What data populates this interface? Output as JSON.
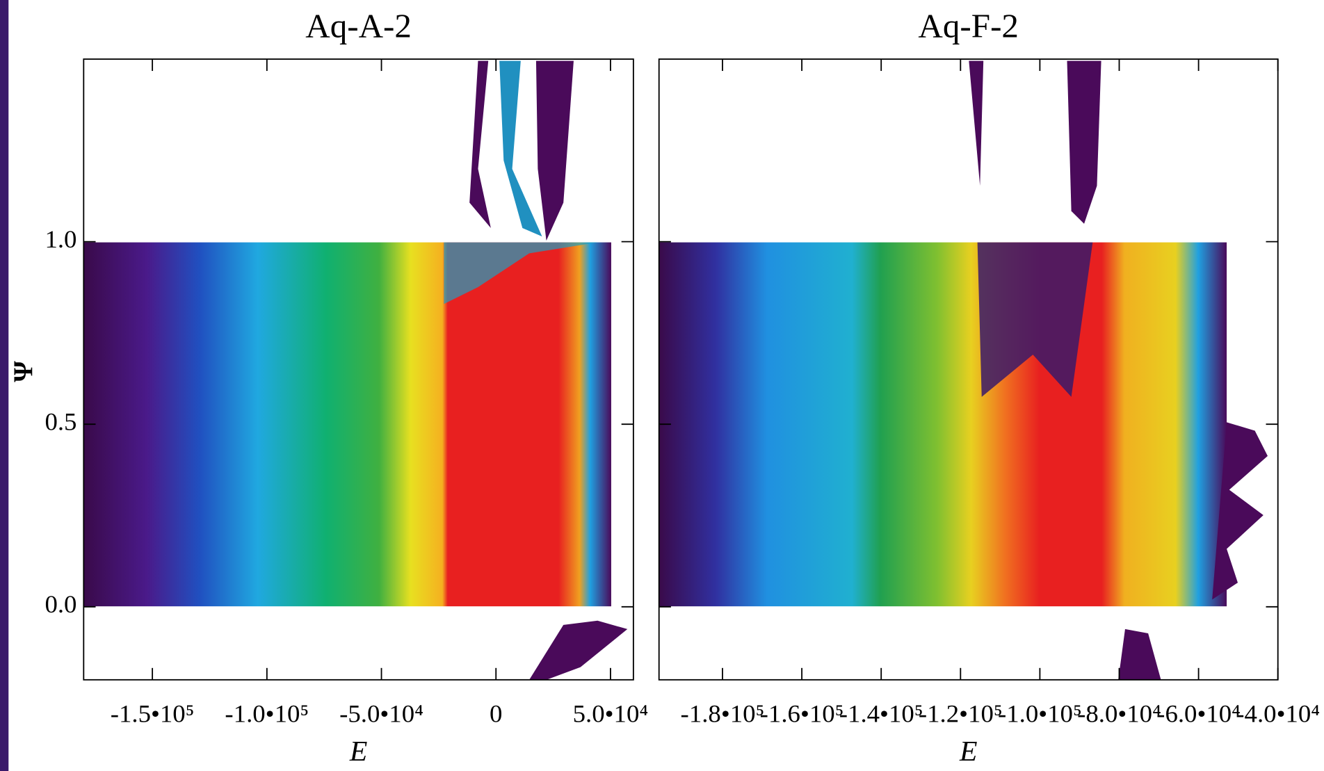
{
  "chart_data": [
    {
      "type": "density",
      "title": "Aq-A-2",
      "xlabel": "E",
      "ylabel": "Ψ",
      "xlim": [
        -180000,
        60000
      ],
      "ylim": [
        -0.2,
        1.5
      ],
      "xticks": [
        {
          "value": -150000,
          "label": "-1.5•10⁵"
        },
        {
          "value": -100000,
          "label": "-1.0•10⁵"
        },
        {
          "value": -50000,
          "label": "-5.0•10⁴"
        },
        0,
        {
          "value": 50000,
          "label": "5.0•10⁴"
        }
      ],
      "yticks": [
        {
          "value": 0,
          "label": "0.0"
        },
        0.5,
        {
          "value": 1,
          "label": "1.0"
        }
      ]
    },
    {
      "type": "density",
      "title": "Aq-F-2",
      "xlabel": "E",
      "xlim": [
        -196000,
        -40000
      ],
      "ylim": [
        -0.2,
        1.5
      ],
      "xticks": [
        {
          "value": -180000,
          "label": "-1.8•10⁵"
        },
        {
          "value": -160000,
          "label": "-1.6•10⁵"
        },
        {
          "value": -140000,
          "label": "-1.4•10⁵"
        },
        {
          "value": -120000,
          "label": "-1.2•10⁵"
        },
        {
          "value": -100000,
          "label": "-1.0•10⁵"
        },
        {
          "value": -80000,
          "label": "-8.0•10⁴"
        },
        {
          "value": -60000,
          "label": "-6.0•10⁴"
        },
        {
          "value": -40000,
          "label": "-4.0•10⁴"
        }
      ],
      "yticks": [
        0,
        0.5,
        1
      ]
    }
  ]
}
